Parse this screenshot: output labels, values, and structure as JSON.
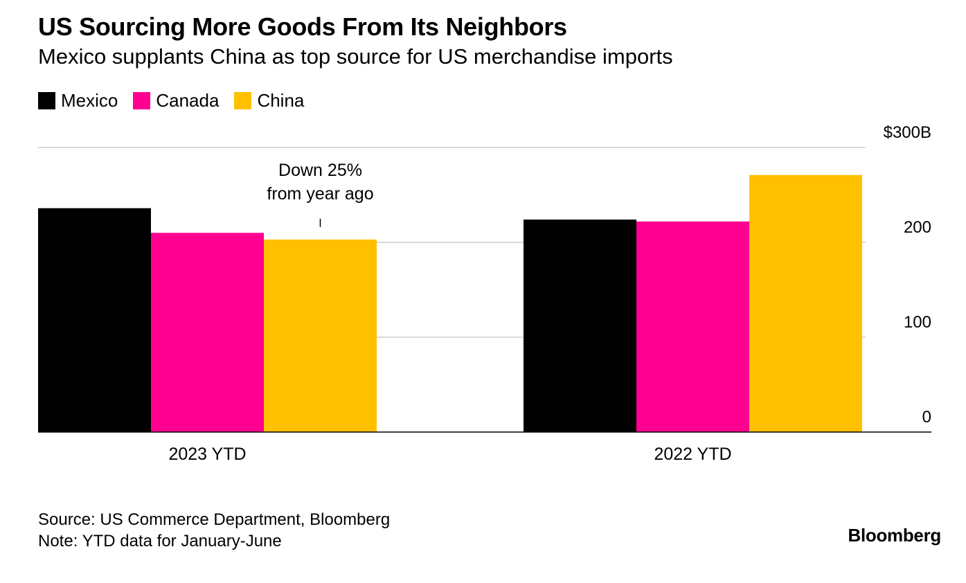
{
  "header": {
    "title": "US Sourcing More Goods From Its Neighbors",
    "subtitle": "Mexico supplants China as top source for US merchandise imports"
  },
  "legend": [
    {
      "label": "Mexico",
      "color": "#000000"
    },
    {
      "label": "Canada",
      "color": "#ff0090"
    },
    {
      "label": "China",
      "color": "#ffc000"
    }
  ],
  "chart_data": {
    "type": "bar",
    "categories": [
      "2023 YTD",
      "2022 YTD"
    ],
    "series": [
      {
        "name": "Mexico",
        "color": "#000000",
        "values": [
          236,
          224
        ]
      },
      {
        "name": "Canada",
        "color": "#ff0090",
        "values": [
          210,
          222
        ]
      },
      {
        "name": "China",
        "color": "#ffc000",
        "values": [
          203,
          271
        ]
      }
    ],
    "ylim": [
      0,
      300
    ],
    "y_ticks": [
      {
        "value": 0,
        "label": "0"
      },
      {
        "value": 100,
        "label": "100"
      },
      {
        "value": 200,
        "label": "200"
      },
      {
        "value": 300,
        "label": "$300B"
      }
    ],
    "y_axis_side": "right",
    "grid": true,
    "annotation": {
      "lines": [
        "Down 25%",
        "from year ago"
      ],
      "category": "2023 YTD",
      "series": "China"
    }
  },
  "footer": {
    "source": "Source: US Commerce Department, Bloomberg",
    "note": "Note: YTD data for January-June"
  },
  "brand": "Bloomberg"
}
